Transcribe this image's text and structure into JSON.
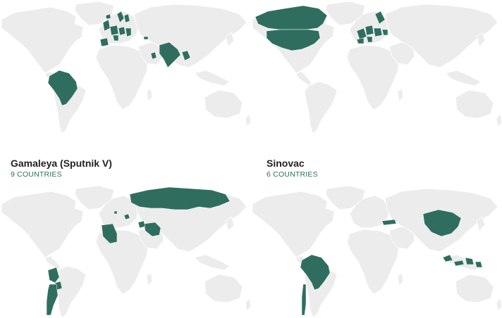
{
  "colors": {
    "highlight": "#2f6e5f",
    "land": "#ececec",
    "background": "#ffffff",
    "subtitle": "#2f6e5f"
  },
  "panels": [
    {
      "title": "",
      "subtitle": ""
    },
    {
      "title": "",
      "subtitle": ""
    },
    {
      "title": "Gamaleya (Sputnik V)",
      "subtitle": "9 COUNTRIES"
    },
    {
      "title": "Sinovac",
      "subtitle": "6 COUNTRIES"
    }
  ]
}
